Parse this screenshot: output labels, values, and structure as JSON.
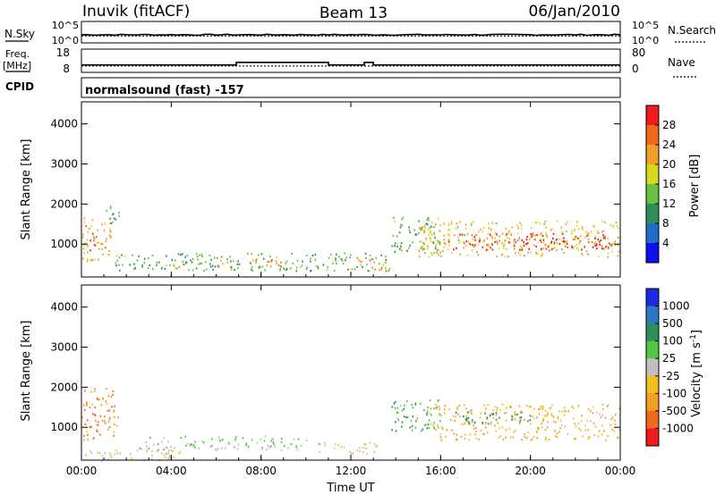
{
  "header": {
    "station": "Inuvik",
    "mode": "(fitACF)",
    "beam": "Beam 13",
    "date": "06/Jan/2010"
  },
  "strip_labels": {
    "nsky": "N.Sky",
    "nsky_ticks": [
      "10^5",
      "10^0"
    ],
    "nsearch": "N.Search",
    "nsearch_ticks": [
      "10^5",
      "10^0"
    ],
    "freq_line1": "Freq.",
    "freq_line2": "[MHz]",
    "freq_ticks": [
      "18",
      "8"
    ],
    "nave": "Nave",
    "nave_ticks": [
      "80",
      "0"
    ],
    "cpid": "CPID",
    "cpid_text": "normalsound (fast) -157"
  },
  "chart_data": [
    {
      "type": "line",
      "title": "",
      "subplots": [
        {
          "name": "N.Sky / N.Search",
          "ylim_log10": [
            0,
            5
          ],
          "nsky_level_log10": 1.9,
          "nsearch_level_log10": 1.6
        },
        {
          "name": "Freq. [MHz] / Nave",
          "freq_ylim": [
            8,
            18
          ],
          "nave_ylim": [
            0,
            80
          ],
          "freq_steps": [
            {
              "t": 0,
              "f": 11.2
            },
            {
              "t": 6.9,
              "f": 12.3
            },
            {
              "t": 11.0,
              "f": 11.2
            },
            {
              "t": 12.6,
              "f": 12.3
            },
            {
              "t": 13.0,
              "f": 11.2
            },
            {
              "t": 24,
              "f": 11.2
            }
          ],
          "nave_level": 22
        }
      ],
      "xlim_hours": [
        0,
        24
      ]
    },
    {
      "type": "heatmap",
      "title": "Power",
      "xlabel": "Time UT",
      "ylabel": "Slant Range [km]",
      "xticks": [
        "00:00",
        "04:00",
        "08:00",
        "12:00",
        "16:00",
        "20:00",
        "00:00"
      ],
      "yticks": [
        "1000",
        "2000",
        "3000",
        "4000"
      ],
      "ylim_km": [
        180,
        4550
      ],
      "colorbar_label": "Power [dB]",
      "colorbar_ticks": [
        "4",
        "8",
        "12",
        "16",
        "20",
        "24",
        "28"
      ],
      "colorbar_range": [
        0,
        30
      ],
      "colors": [
        "#0a10ee",
        "#1e6ec8",
        "#2f8f5a",
        "#6cc040",
        "#d8d820",
        "#f0a028",
        "#f06a1e",
        "#ee1c1c"
      ],
      "regions": [
        {
          "t0": 0.0,
          "t1": 1.4,
          "r0": 600,
          "r1": 1700,
          "p": 20
        },
        {
          "t0": 0.3,
          "t1": 0.6,
          "r0": 800,
          "r1": 1300,
          "p": 28
        },
        {
          "t0": 1.0,
          "t1": 1.7,
          "r0": 1500,
          "r1": 2000,
          "p": 10
        },
        {
          "t0": 1.5,
          "t1": 13.8,
          "r0": 350,
          "r1": 800,
          "p": 12
        },
        {
          "t0": 6.0,
          "t1": 9.0,
          "r0": 450,
          "r1": 650,
          "p": 22
        },
        {
          "t0": 12.0,
          "t1": 13.7,
          "r0": 350,
          "r1": 650,
          "p": 20
        },
        {
          "t0": 13.8,
          "t1": 16.0,
          "r0": 800,
          "r1": 1700,
          "p": 12
        },
        {
          "t0": 15.0,
          "t1": 24.0,
          "r0": 700,
          "r1": 1600,
          "p": 18
        },
        {
          "t0": 16.0,
          "t1": 23.6,
          "r0": 850,
          "r1": 1300,
          "p": 28
        }
      ]
    },
    {
      "type": "heatmap",
      "title": "Velocity",
      "xlabel": "Time UT",
      "ylabel": "Slant Range [km]",
      "xticks": [
        "00:00",
        "04:00",
        "08:00",
        "12:00",
        "16:00",
        "20:00",
        "00:00"
      ],
      "yticks": [
        "1000",
        "2000",
        "3000",
        "4000"
      ],
      "ylim_km": [
        180,
        4550
      ],
      "colorbar_label": "Velocity [m s^-1]",
      "colorbar_ticks": [
        "1000",
        "500",
        "100",
        "25",
        "-25",
        "-100",
        "-500",
        "-1000"
      ],
      "colorbar_range": [
        -1000,
        1000
      ],
      "colors": [
        "#1a2ce0",
        "#2a78c8",
        "#2f8f5a",
        "#50c840",
        "#c0c0c0",
        "#f0c020",
        "#f0a028",
        "#f06a1e",
        "#ee1c1c"
      ],
      "regions": [
        {
          "t0": 0.0,
          "t1": 1.6,
          "r0": 700,
          "r1": 2000,
          "v": -500
        },
        {
          "t0": 0.0,
          "t1": 4.5,
          "r0": 180,
          "r1": 450,
          "v": -100
        },
        {
          "t0": 2.5,
          "t1": 10.0,
          "r0": 450,
          "r1": 800,
          "v": 100
        },
        {
          "t0": 10.5,
          "t1": 13.3,
          "r0": 350,
          "r1": 650,
          "v": -100
        },
        {
          "t0": 13.8,
          "t1": 16.0,
          "r0": 900,
          "r1": 1700,
          "v": 300
        },
        {
          "t0": 15.5,
          "t1": 24.0,
          "r0": 700,
          "r1": 1600,
          "v": -300
        },
        {
          "t0": 16.5,
          "t1": 20.0,
          "r0": 1100,
          "r1": 1400,
          "v": 500
        }
      ]
    }
  ]
}
